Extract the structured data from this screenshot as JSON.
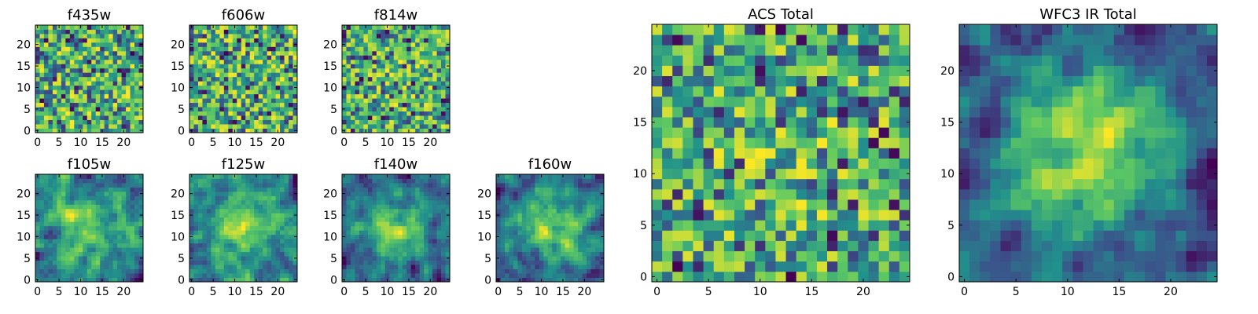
{
  "figure": {
    "colormap": "viridis",
    "colormap_stops": [
      "#440154",
      "#3b528b",
      "#21918c",
      "#5ec962",
      "#fde725"
    ]
  },
  "chart_data": [
    {
      "type": "heatmap",
      "title": "f435w",
      "grid_size": 25,
      "xticks": [
        "0",
        "5",
        "10",
        "15",
        "20"
      ],
      "yticks": [
        "0",
        "5",
        "10",
        "15",
        "20"
      ],
      "xlim": [
        0,
        25
      ],
      "ylim": [
        0,
        25
      ],
      "seed": 11,
      "blur": 0,
      "center_bump": 0.0
    },
    {
      "type": "heatmap",
      "title": "f606w",
      "grid_size": 25,
      "xticks": [
        "0",
        "5",
        "10",
        "15",
        "20"
      ],
      "yticks": [
        "0",
        "5",
        "10",
        "15",
        "20"
      ],
      "xlim": [
        0,
        25
      ],
      "ylim": [
        0,
        25
      ],
      "seed": 23,
      "blur": 0,
      "center_bump": 0.0
    },
    {
      "type": "heatmap",
      "title": "f814w",
      "grid_size": 25,
      "xticks": [
        "0",
        "5",
        "10",
        "15",
        "20"
      ],
      "yticks": [
        "0",
        "5",
        "10",
        "15",
        "20"
      ],
      "xlim": [
        0,
        25
      ],
      "ylim": [
        0,
        25
      ],
      "seed": 37,
      "blur": 0,
      "center_bump": 0.05
    },
    {
      "type": "heatmap",
      "title": "f105w",
      "grid_size": 25,
      "xticks": [
        "0",
        "5",
        "10",
        "15",
        "20"
      ],
      "yticks": [
        "0",
        "5",
        "10",
        "15",
        "20"
      ],
      "xlim": [
        0,
        25
      ],
      "ylim": [
        0,
        25
      ],
      "seed": 41,
      "blur": 1,
      "center_bump": 0.25
    },
    {
      "type": "heatmap",
      "title": "f125w",
      "grid_size": 25,
      "xticks": [
        "0",
        "5",
        "10",
        "15",
        "20"
      ],
      "yticks": [
        "0",
        "5",
        "10",
        "15",
        "20"
      ],
      "xlim": [
        0,
        25
      ],
      "ylim": [
        0,
        25
      ],
      "seed": 53,
      "blur": 1,
      "center_bump": 0.3
    },
    {
      "type": "heatmap",
      "title": "f140w",
      "grid_size": 25,
      "xticks": [
        "0",
        "5",
        "10",
        "15",
        "20"
      ],
      "yticks": [
        "0",
        "5",
        "10",
        "15",
        "20"
      ],
      "xlim": [
        0,
        25
      ],
      "ylim": [
        0,
        25
      ],
      "seed": 67,
      "blur": 1,
      "center_bump": 0.35
    },
    {
      "type": "heatmap",
      "title": "f160w",
      "grid_size": 25,
      "xticks": [
        "0",
        "5",
        "10",
        "15",
        "20"
      ],
      "yticks": [
        "0",
        "5",
        "10",
        "15",
        "20"
      ],
      "xlim": [
        0,
        25
      ],
      "ylim": [
        0,
        25
      ],
      "seed": 79,
      "blur": 1,
      "center_bump": 0.4
    },
    {
      "type": "heatmap",
      "title": "ACS Total",
      "grid_size": 25,
      "xticks": [
        "0",
        "5",
        "10",
        "15",
        "20"
      ],
      "yticks": [
        "0",
        "5",
        "10",
        "15",
        "20"
      ],
      "xlim": [
        0,
        25
      ],
      "ylim": [
        0,
        25
      ],
      "seed": 97,
      "blur": 0,
      "center_bump": 0.1
    },
    {
      "type": "heatmap",
      "title": "WFC3 IR Total",
      "grid_size": 25,
      "xticks": [
        "0",
        "5",
        "10",
        "15",
        "20"
      ],
      "yticks": [
        "0",
        "5",
        "10",
        "15",
        "20"
      ],
      "xlim": [
        0,
        25
      ],
      "ylim": [
        0,
        25
      ],
      "seed": 113,
      "blur": 1,
      "center_bump": 0.55
    }
  ]
}
